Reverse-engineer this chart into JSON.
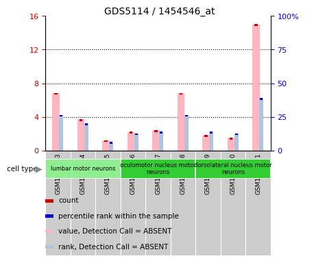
{
  "title": "GDS5114 / 1454546_at",
  "samples": [
    "GSM1259963",
    "GSM1259964",
    "GSM1259965",
    "GSM1259966",
    "GSM1259967",
    "GSM1259968",
    "GSM1259969",
    "GSM1259970",
    "GSM1259971"
  ],
  "value_absent": [
    6.8,
    3.7,
    1.2,
    2.2,
    2.4,
    6.8,
    1.8,
    1.5,
    15.0
  ],
  "rank_absent": [
    4.2,
    3.2,
    1.0,
    2.0,
    2.2,
    4.2,
    2.2,
    2.0,
    6.2
  ],
  "ylim_left": [
    0,
    16
  ],
  "ylim_right": [
    0,
    100
  ],
  "yticks_left": [
    0,
    4,
    8,
    12,
    16
  ],
  "ytick_labels_right": [
    "0",
    "25",
    "50",
    "75",
    "100%"
  ],
  "cell_type_groups": [
    {
      "label": "lumbar motor neurons",
      "start": 0,
      "end": 3,
      "color": "#90EE90"
    },
    {
      "label": "oculomotor nucleus motor\nneurons",
      "start": 3,
      "end": 6,
      "color": "#32CD32"
    },
    {
      "label": "dorsolateral nucleus motor\nneurons",
      "start": 6,
      "end": 9,
      "color": "#32CD32"
    }
  ],
  "color_value_absent": "#FFB6C1",
  "color_rank_absent": "#B0C4DE",
  "color_count": "#CC0000",
  "color_percentile": "#0000CC",
  "background_color": "#ffffff"
}
